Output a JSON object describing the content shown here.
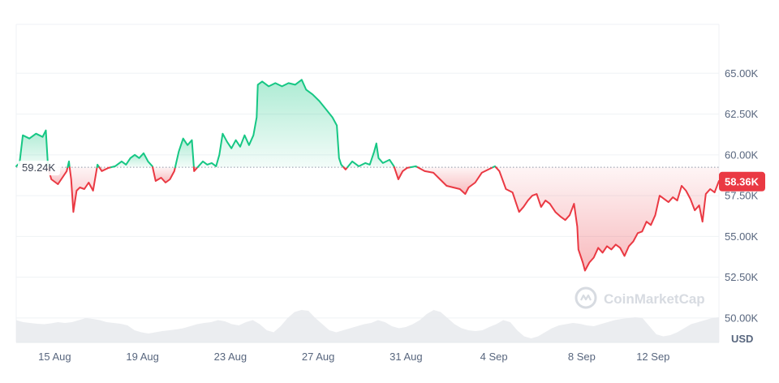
{
  "chart_data": {
    "type": "area",
    "baseline": {
      "value": 59.24,
      "label": "59.24K"
    },
    "current": {
      "value": 58.36,
      "label": "58.36K"
    },
    "y_unit_label": "USD",
    "ylim": [
      48.5,
      68.0
    ],
    "y_ticks": [
      {
        "value": 50.0,
        "label": "50.00K"
      },
      {
        "value": 52.5,
        "label": "52.50K"
      },
      {
        "value": 55.0,
        "label": "55.00K"
      },
      {
        "value": 57.5,
        "label": "57.50K"
      },
      {
        "value": 60.0,
        "label": "60.00K"
      },
      {
        "value": 62.5,
        "label": "62.50K"
      },
      {
        "value": 65.0,
        "label": "65.00K"
      }
    ],
    "x_range_days": [
      0,
      28.8
    ],
    "x_ticks": [
      {
        "day": 1.75,
        "label": "15 Aug"
      },
      {
        "day": 5.75,
        "label": "19 Aug"
      },
      {
        "day": 9.75,
        "label": "23 Aug"
      },
      {
        "day": 13.75,
        "label": "27 Aug"
      },
      {
        "day": 17.75,
        "label": "31 Aug"
      },
      {
        "day": 21.75,
        "label": "4 Sep"
      },
      {
        "day": 25.75,
        "label": "8 Sep"
      },
      {
        "day": 29.0,
        "label": "12 Sep"
      }
    ],
    "series": [
      {
        "points": [
          [
            0.0,
            59.3
          ],
          [
            0.15,
            59.5
          ],
          [
            0.3,
            61.2
          ],
          [
            0.6,
            61.0
          ],
          [
            0.9,
            61.3
          ],
          [
            1.2,
            61.1
          ],
          [
            1.35,
            61.5
          ],
          [
            1.45,
            59.2
          ],
          [
            1.6,
            58.5
          ],
          [
            1.9,
            58.2
          ],
          [
            2.1,
            58.6
          ],
          [
            2.3,
            59.0
          ],
          [
            2.4,
            59.6
          ],
          [
            2.5,
            58.5
          ],
          [
            2.6,
            56.5
          ],
          [
            2.75,
            57.8
          ],
          [
            2.9,
            58.0
          ],
          [
            3.1,
            57.9
          ],
          [
            3.3,
            58.3
          ],
          [
            3.5,
            57.8
          ],
          [
            3.7,
            59.4
          ],
          [
            3.9,
            59.0
          ],
          [
            4.2,
            59.2
          ],
          [
            4.5,
            59.3
          ],
          [
            4.8,
            59.6
          ],
          [
            5.0,
            59.4
          ],
          [
            5.2,
            59.8
          ],
          [
            5.4,
            60.0
          ],
          [
            5.6,
            59.8
          ],
          [
            5.8,
            60.1
          ],
          [
            6.0,
            59.6
          ],
          [
            6.2,
            59.3
          ],
          [
            6.35,
            58.4
          ],
          [
            6.6,
            58.6
          ],
          [
            6.8,
            58.3
          ],
          [
            7.0,
            58.5
          ],
          [
            7.2,
            59.0
          ],
          [
            7.4,
            60.2
          ],
          [
            7.6,
            61.0
          ],
          [
            7.8,
            60.6
          ],
          [
            8.0,
            60.9
          ],
          [
            8.1,
            59.0
          ],
          [
            8.3,
            59.3
          ],
          [
            8.5,
            59.6
          ],
          [
            8.7,
            59.4
          ],
          [
            8.9,
            59.5
          ],
          [
            9.1,
            59.3
          ],
          [
            9.25,
            60.0
          ],
          [
            9.4,
            61.3
          ],
          [
            9.6,
            60.8
          ],
          [
            9.8,
            60.4
          ],
          [
            10.0,
            60.9
          ],
          [
            10.2,
            60.5
          ],
          [
            10.4,
            61.2
          ],
          [
            10.6,
            60.6
          ],
          [
            10.8,
            61.2
          ],
          [
            10.95,
            62.3
          ],
          [
            11.0,
            64.3
          ],
          [
            11.2,
            64.5
          ],
          [
            11.5,
            64.2
          ],
          [
            11.8,
            64.4
          ],
          [
            12.1,
            64.2
          ],
          [
            12.4,
            64.4
          ],
          [
            12.7,
            64.3
          ],
          [
            13.0,
            64.6
          ],
          [
            13.2,
            64.0
          ],
          [
            13.5,
            63.7
          ],
          [
            13.8,
            63.3
          ],
          [
            14.1,
            62.8
          ],
          [
            14.4,
            62.3
          ],
          [
            14.6,
            61.8
          ],
          [
            14.7,
            59.8
          ],
          [
            14.8,
            59.4
          ],
          [
            15.0,
            59.1
          ],
          [
            15.3,
            59.6
          ],
          [
            15.6,
            59.3
          ],
          [
            15.9,
            59.5
          ],
          [
            16.1,
            59.4
          ],
          [
            16.3,
            60.2
          ],
          [
            16.4,
            60.7
          ],
          [
            16.5,
            59.8
          ],
          [
            16.7,
            59.5
          ],
          [
            17.0,
            59.7
          ],
          [
            17.2,
            59.3
          ],
          [
            17.4,
            58.5
          ],
          [
            17.6,
            59.0
          ],
          [
            17.8,
            59.2
          ],
          [
            18.2,
            59.3
          ],
          [
            18.6,
            59.0
          ],
          [
            19.0,
            58.9
          ],
          [
            19.3,
            58.5
          ],
          [
            19.6,
            58.1
          ],
          [
            19.9,
            58.0
          ],
          [
            20.2,
            57.9
          ],
          [
            20.45,
            57.6
          ],
          [
            20.6,
            58.0
          ],
          [
            20.9,
            58.3
          ],
          [
            21.2,
            58.9
          ],
          [
            21.5,
            59.1
          ],
          [
            21.8,
            59.3
          ],
          [
            22.0,
            59.0
          ],
          [
            22.3,
            57.9
          ],
          [
            22.6,
            57.7
          ],
          [
            22.9,
            56.5
          ],
          [
            23.1,
            56.8
          ],
          [
            23.3,
            57.2
          ],
          [
            23.5,
            57.5
          ],
          [
            23.7,
            57.6
          ],
          [
            23.9,
            56.8
          ],
          [
            24.1,
            57.2
          ],
          [
            24.3,
            57.0
          ],
          [
            24.55,
            56.5
          ],
          [
            24.8,
            56.2
          ],
          [
            25.0,
            56.0
          ],
          [
            25.2,
            56.3
          ],
          [
            25.4,
            57.0
          ],
          [
            25.55,
            55.6
          ],
          [
            25.6,
            54.2
          ],
          [
            25.8,
            53.4
          ],
          [
            25.9,
            52.9
          ],
          [
            26.1,
            53.4
          ],
          [
            26.3,
            53.7
          ],
          [
            26.5,
            54.3
          ],
          [
            26.7,
            54.0
          ],
          [
            26.9,
            54.4
          ],
          [
            27.1,
            54.2
          ],
          [
            27.3,
            54.5
          ],
          [
            27.5,
            54.3
          ],
          [
            27.7,
            53.8
          ],
          [
            27.9,
            54.4
          ],
          [
            28.1,
            54.7
          ],
          [
            28.3,
            55.2
          ],
          [
            28.5,
            55.3
          ],
          [
            28.7,
            55.9
          ],
          [
            28.9,
            55.7
          ],
          [
            29.1,
            56.3
          ],
          [
            29.3,
            57.5
          ],
          [
            29.5,
            57.3
          ],
          [
            29.7,
            57.1
          ],
          [
            29.9,
            57.4
          ],
          [
            30.1,
            57.2
          ],
          [
            30.3,
            58.1
          ],
          [
            30.5,
            57.8
          ],
          [
            30.7,
            57.3
          ],
          [
            30.9,
            56.6
          ],
          [
            31.1,
            56.9
          ],
          [
            31.25,
            55.9
          ],
          [
            31.4,
            57.6
          ],
          [
            31.6,
            57.9
          ],
          [
            31.8,
            57.7
          ],
          [
            32.0,
            58.4
          ]
        ]
      }
    ],
    "volume": [
      0.55,
      0.5,
      0.48,
      0.46,
      0.45,
      0.47,
      0.5,
      0.48,
      0.5,
      0.55,
      0.6,
      0.58,
      0.55,
      0.5,
      0.48,
      0.46,
      0.42,
      0.3,
      0.25,
      0.22,
      0.25,
      0.28,
      0.3,
      0.32,
      0.35,
      0.4,
      0.45,
      0.48,
      0.5,
      0.55,
      0.52,
      0.45,
      0.42,
      0.5,
      0.55,
      0.45,
      0.3,
      0.25,
      0.4,
      0.6,
      0.75,
      0.8,
      0.78,
      0.6,
      0.45,
      0.3,
      0.25,
      0.3,
      0.35,
      0.4,
      0.45,
      0.48,
      0.55,
      0.5,
      0.4,
      0.35,
      0.38,
      0.45,
      0.55,
      0.7,
      0.8,
      0.75,
      0.6,
      0.45,
      0.35,
      0.3,
      0.28,
      0.3,
      0.38,
      0.45,
      0.55,
      0.5,
      0.3,
      0.15,
      0.1,
      0.15,
      0.25,
      0.35,
      0.42,
      0.45,
      0.48,
      0.46,
      0.42,
      0.4,
      0.45,
      0.5,
      0.55,
      0.58,
      0.6,
      0.62,
      0.6,
      0.4,
      0.2,
      0.15,
      0.18,
      0.25,
      0.35,
      0.45,
      0.5,
      0.55,
      0.6,
      0.62
    ],
    "colors": {
      "up": "#16c784",
      "down": "#ea3943",
      "grid": "#eff2f5",
      "axis_text": "#58667e",
      "volume": "#e6e8ec",
      "baseline_label_text": "#3d4454"
    },
    "watermark": "CoinMarketCap"
  }
}
